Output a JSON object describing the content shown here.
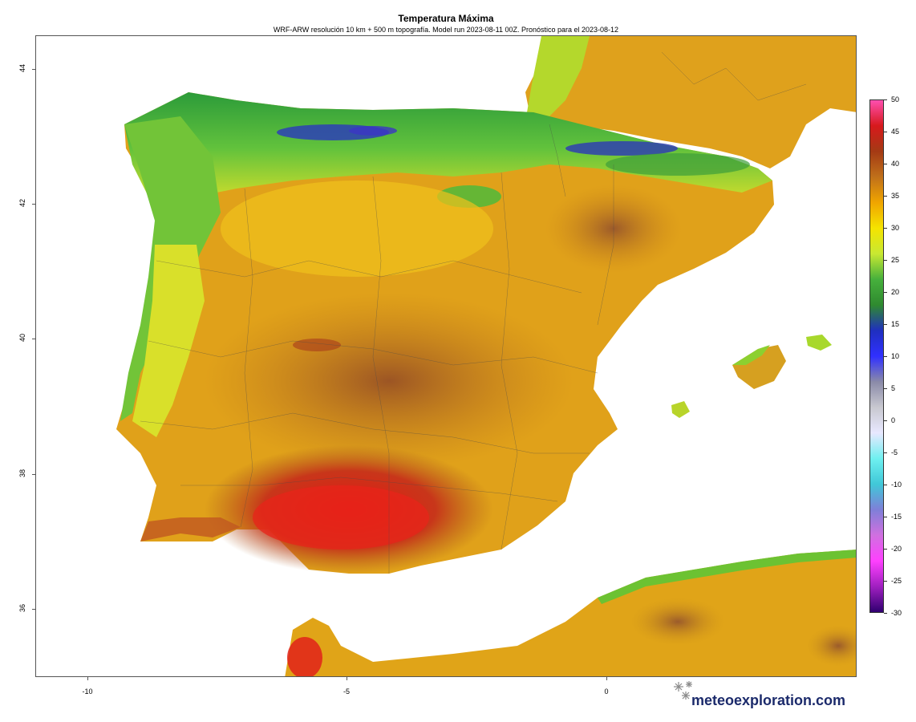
{
  "header": {
    "title": "Temperatura Máxima",
    "subtitle": "WRF-ARW resolución 10 km + 500 m topografía. Model run 2023-08-11 00Z. Pronóstico para el  2023-08-12"
  },
  "axes": {
    "y_ticks": [
      "44",
      "42",
      "40",
      "38",
      "36"
    ],
    "x_ticks": [
      "-10",
      "-5",
      "0"
    ]
  },
  "colorbar": {
    "labels": [
      "50",
      "45",
      "40",
      "35",
      "30",
      "25",
      "20",
      "15",
      "10",
      "5",
      "0",
      "-5",
      "-10",
      "-15",
      "-20",
      "-25",
      "-30"
    ],
    "stops": [
      "#ff4fb0",
      "#d7191c",
      "#a43a14",
      "#c0701a",
      "#f0a500",
      "#f5e400",
      "#c8e832",
      "#46b03c",
      "#2f8a2f",
      "#1f2fbf",
      "#3030ff",
      "#8a8aa8",
      "#c8c8d0",
      "#e8e8ff",
      "#6ff0f0",
      "#40c8d8",
      "#7f7fd8",
      "#d070e0",
      "#ff40ff",
      "#a020c0",
      "#300070"
    ]
  },
  "watermark": {
    "text": "meteoexploration.com",
    "icon": "snowflake-icon"
  }
}
